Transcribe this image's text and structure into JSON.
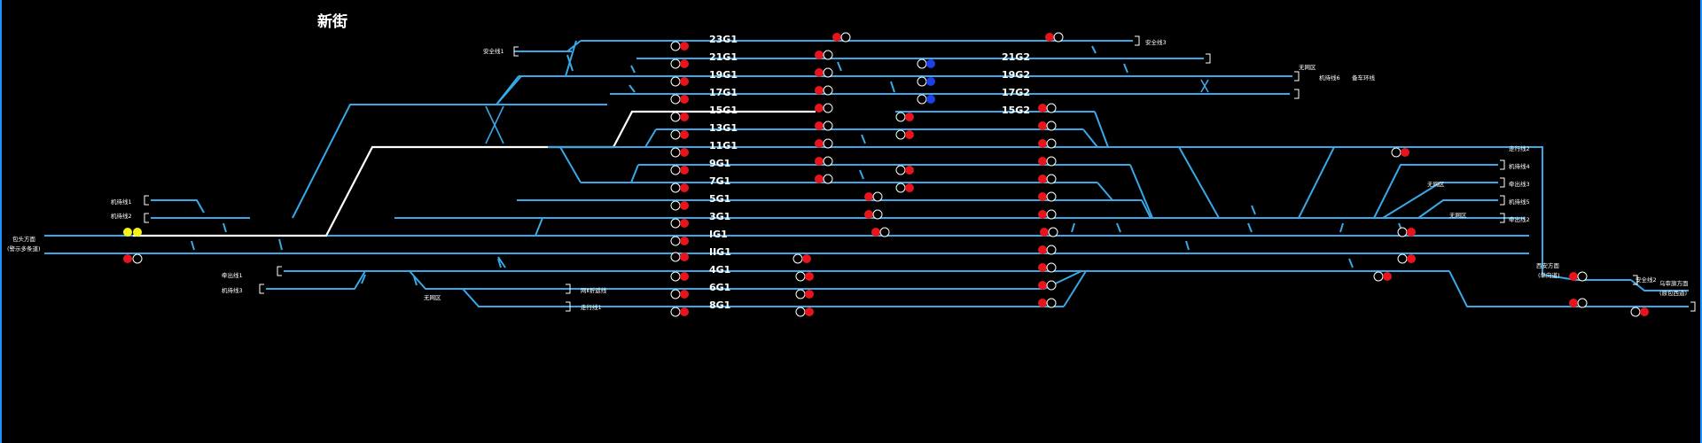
{
  "station": {
    "title": "新街"
  },
  "colors": {
    "track": "#39A8E8",
    "route": "#FFFFFF",
    "background": "#000000",
    "signal_red": "#E8141B",
    "signal_blue": "#1C3FE8",
    "signal_yellow": "#F7F21A",
    "signal_off": "#000000"
  },
  "tracks": [
    {
      "label": "23G1"
    },
    {
      "label": "21G1"
    },
    {
      "label": "19G1"
    },
    {
      "label": "17G1"
    },
    {
      "label": "15G1"
    },
    {
      "label": "13G1"
    },
    {
      "label": "11G1"
    },
    {
      "label": "9G1"
    },
    {
      "label": "7G1"
    },
    {
      "label": "5G1"
    },
    {
      "label": "3G1"
    },
    {
      "label": "IG1"
    },
    {
      "label": "IIG1"
    },
    {
      "label": "4G1"
    },
    {
      "label": "6G1"
    },
    {
      "label": "8G1"
    }
  ],
  "right_tracks": [
    {
      "label": "21G2"
    },
    {
      "label": "19G2"
    },
    {
      "label": "17G2"
    },
    {
      "label": "15G2"
    }
  ],
  "small_labels": {
    "safety_line_1": "安全线1",
    "safety_line_3": "安全线3",
    "engine_line_1": "机待线1",
    "engine_line_2": "机待线2",
    "engine_line_3": "机待线3",
    "engine_line_4": "机待线4",
    "engine_line_5": "机待线5",
    "engine_line_6": "机待线6",
    "wye_line": "备车环线",
    "no_network_1": "无网区",
    "no_network_2": "无网区",
    "no_network_3": "无网区",
    "no_network_4": "无网区",
    "branch_line_1": "牵出线1",
    "branch_line_3": "牵出线3",
    "branch_line_2": "牵出线2",
    "station_foot_line": "网Ⅱ折返线",
    "depart_line_1": "走行线1",
    "depart_line_2": "走行线2",
    "safety_line_2": "安全线2",
    "left_dir_1": "包头方面",
    "left_dir_2": "(警示多条道)",
    "right_dir_a1": "西安方面",
    "right_dir_a2": "(单向道)",
    "right_dir_b1": "乌审旗方面",
    "right_dir_b2": "(原包西道)"
  }
}
